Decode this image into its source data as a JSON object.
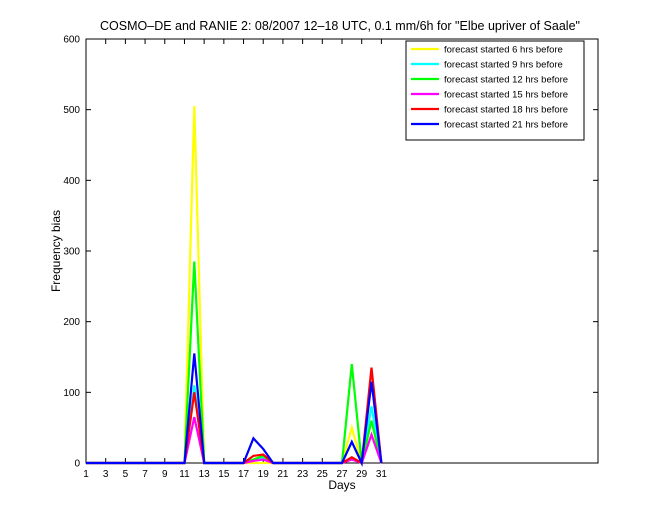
{
  "chart_data": {
    "type": "line",
    "title": "COSMO–DE and RANIE 2: 08/2007 12–18 UTC, 0.1 mm/6h for \"Elbe upriver of Saale\"",
    "xlabel": "Days",
    "ylabel": "Frequency bias",
    "xlim": [
      1,
      53
    ],
    "ylim": [
      0,
      600
    ],
    "x_ticks": [
      1,
      3,
      5,
      7,
      9,
      11,
      13,
      15,
      17,
      19,
      21,
      23,
      25,
      27,
      29,
      31
    ],
    "y_ticks": [
      0,
      100,
      200,
      300,
      400,
      500,
      600
    ],
    "grid": false,
    "legend_position": "top-right",
    "x": [
      1,
      2,
      3,
      4,
      5,
      6,
      7,
      8,
      9,
      10,
      11,
      12,
      13,
      14,
      15,
      16,
      17,
      18,
      19,
      20,
      21,
      22,
      23,
      24,
      25,
      26,
      27,
      28,
      29,
      30,
      31
    ],
    "series": [
      {
        "name": "forecast started 6 hrs before",
        "color": "#ffff00",
        "values": [
          0,
          0,
          0,
          0,
          0,
          0,
          0,
          0,
          0,
          0,
          0,
          505,
          0,
          0,
          0,
          0,
          0,
          0,
          0,
          0,
          0,
          0,
          0,
          0,
          0,
          0,
          0,
          50,
          0,
          40,
          0
        ]
      },
      {
        "name": "forecast started 9 hrs before",
        "color": "#00ffff",
        "values": [
          0,
          0,
          0,
          0,
          0,
          0,
          0,
          0,
          0,
          0,
          0,
          110,
          0,
          0,
          0,
          0,
          0,
          5,
          8,
          0,
          0,
          0,
          0,
          0,
          0,
          0,
          0,
          30,
          0,
          80,
          0
        ]
      },
      {
        "name": "forecast started 12 hrs before",
        "color": "#00ff00",
        "values": [
          0,
          0,
          0,
          0,
          0,
          0,
          0,
          0,
          0,
          0,
          0,
          285,
          0,
          0,
          0,
          0,
          0,
          5,
          10,
          0,
          0,
          0,
          0,
          0,
          0,
          0,
          0,
          140,
          0,
          60,
          0
        ]
      },
      {
        "name": "forecast started 15 hrs before",
        "color": "#ff00ff",
        "values": [
          0,
          0,
          0,
          0,
          0,
          0,
          0,
          0,
          0,
          0,
          0,
          65,
          0,
          0,
          0,
          0,
          0,
          3,
          5,
          0,
          0,
          0,
          0,
          0,
          0,
          0,
          0,
          5,
          0,
          40,
          0
        ]
      },
      {
        "name": "forecast started 18 hrs before",
        "color": "#ff0000",
        "values": [
          0,
          0,
          0,
          0,
          0,
          0,
          0,
          0,
          0,
          0,
          0,
          100,
          0,
          0,
          0,
          0,
          0,
          10,
          12,
          0,
          0,
          0,
          0,
          0,
          0,
          0,
          0,
          8,
          0,
          135,
          0
        ]
      },
      {
        "name": "forecast started 21 hrs before",
        "color": "#0000ff",
        "values": [
          0,
          0,
          0,
          0,
          0,
          0,
          0,
          0,
          0,
          0,
          0,
          155,
          0,
          0,
          0,
          0,
          0,
          35,
          20,
          0,
          0,
          0,
          0,
          0,
          0,
          0,
          0,
          30,
          0,
          115,
          0
        ]
      }
    ]
  }
}
